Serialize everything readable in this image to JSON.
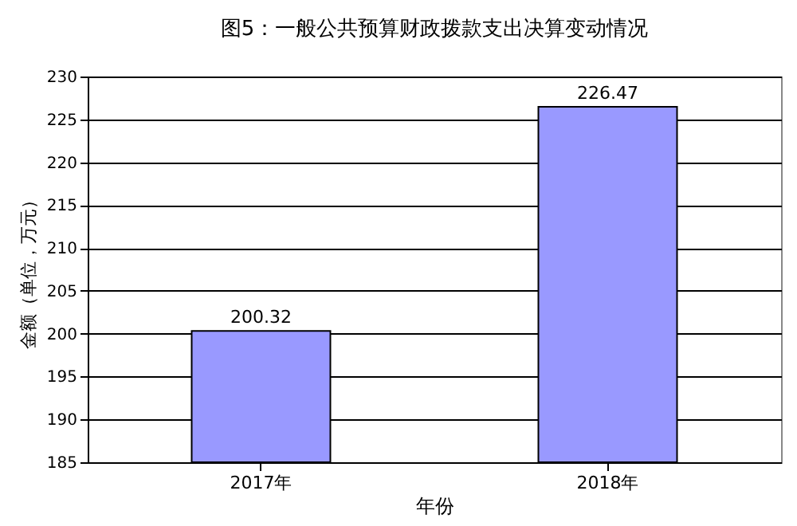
{
  "chart_data": {
    "type": "bar",
    "title": "图5：一般公共预算财政拨款支出决算变动情况",
    "xlabel": "年份",
    "ylabel": "金额（单位，万元）",
    "categories": [
      "2017年",
      "2018年"
    ],
    "values": [
      200.32,
      226.47
    ],
    "color": "#9999ff",
    "ylim": [
      185,
      230
    ],
    "yticks": [
      185,
      190,
      195,
      200,
      205,
      210,
      215,
      220,
      225,
      230
    ],
    "grid": "y",
    "data_labels": true
  }
}
